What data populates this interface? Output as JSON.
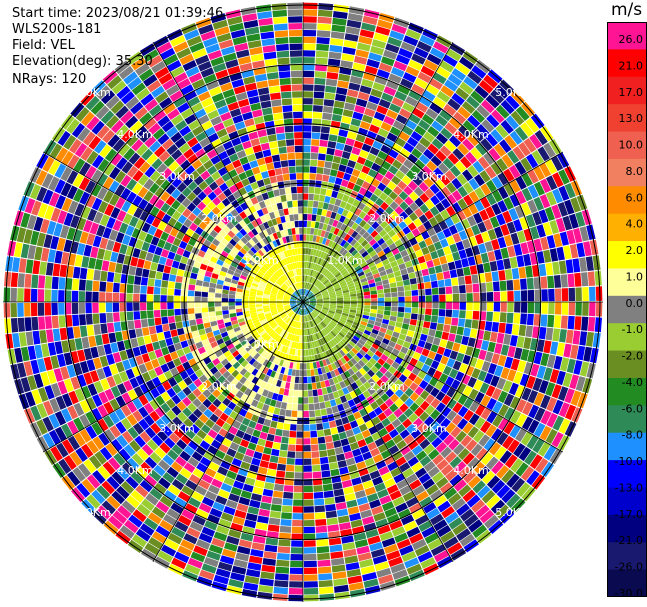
{
  "header": {
    "start_time": "Start time: 2023/08/21 01:39:46",
    "instrument": "WLS200s-181",
    "field": "Field: VEL",
    "elevation": "Elevation(deg): 35.30",
    "nrays": "NRays: 120"
  },
  "colorbar": {
    "title": "m/s",
    "ticks": [
      "26.0",
      "21.0",
      "17.0",
      "13.0",
      "10.0",
      "8.0",
      "6.0",
      "4.0",
      "2.0",
      "1.0",
      "0.0",
      "-1.0",
      "-2.0",
      "-4.0",
      "-6.0",
      "-8.0",
      "-10.0",
      "-13.0",
      "-17.0",
      "-21.0",
      "-26.0",
      "-30.0"
    ],
    "colors": [
      "#ff1493",
      "#ff0000",
      "#f02020",
      "#f04030",
      "#f06050",
      "#f08060",
      "#ff8c00",
      "#ffb000",
      "#ffff00",
      "#ffff99",
      "#808080",
      "#9acd32",
      "#6b8e23",
      "#228b22",
      "#2e8b57",
      "#1e90ff",
      "#0000ff",
      "#0000cd",
      "#000080",
      "#191970",
      "#0a0a50"
    ]
  },
  "chart_data": {
    "type": "heatmap",
    "title": "",
    "ray_count": 120,
    "range_rings_km": [
      "1.0Km",
      "1.0Km",
      "1.0Km",
      "2.0Km",
      "2.0Km",
      "2.0Km",
      "2.0Km",
      "3.0Km",
      "3.0Km",
      "3.0Km",
      "3.0Km",
      "4.0Km",
      "4.0Km",
      "4.0Km",
      "4.0Km",
      "5.0Km",
      "5.0Km",
      "5.0Km",
      "5.0Km"
    ],
    "ring_radii_km": [
      1,
      2,
      3,
      4,
      5
    ],
    "max_range_km": 5.0,
    "velocity_range_ms": [
      -30,
      26
    ],
    "near_field": {
      "west_half": "yellow (+2 to +4 m/s)",
      "east_half": "yellow-green (-1 to -2 m/s)",
      "center": "blue/green"
    },
    "far_field": "noise (random velocities)"
  }
}
